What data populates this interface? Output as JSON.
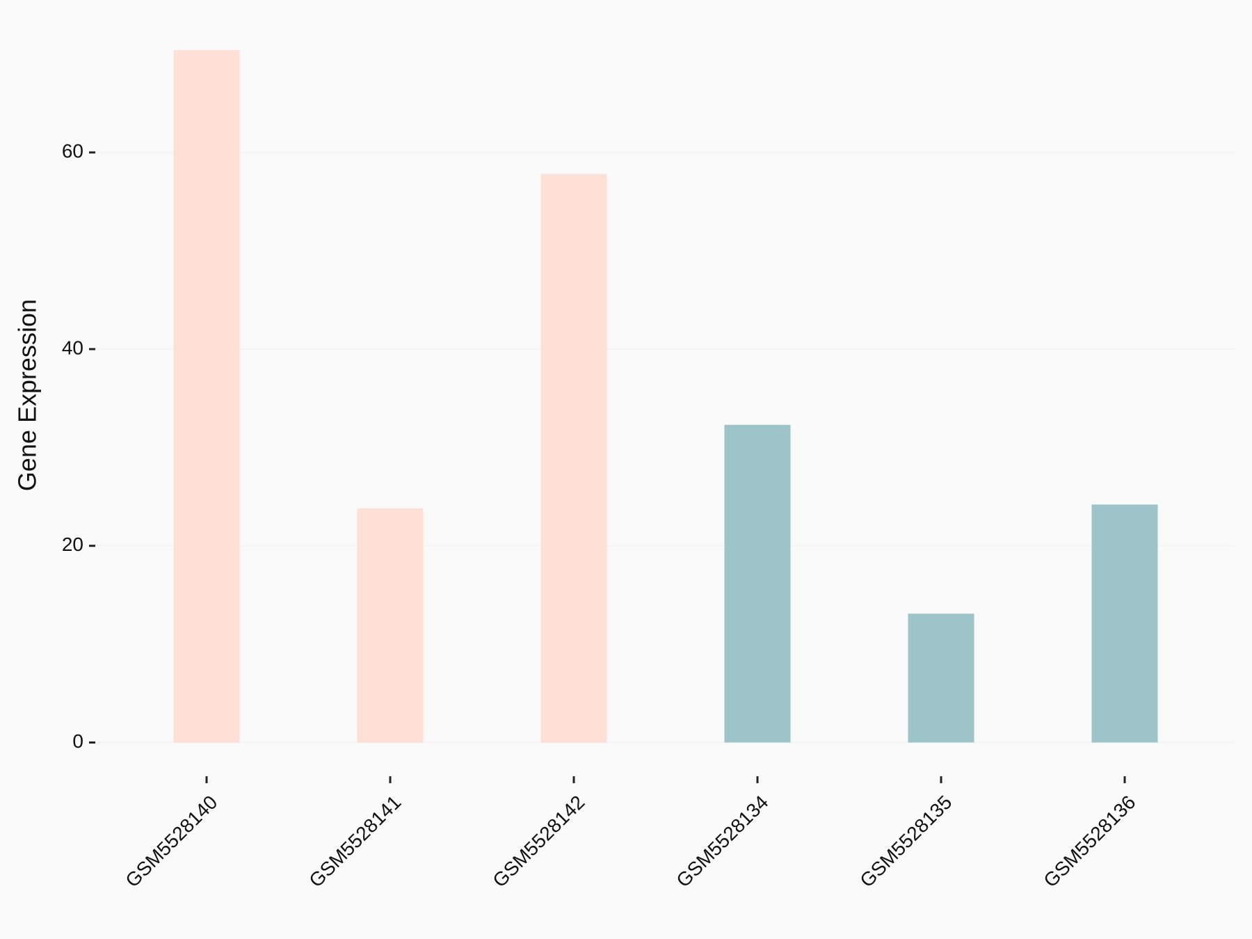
{
  "chart_data": {
    "type": "bar",
    "y_label": "Gene Expression",
    "categories": [
      "GSM5528140",
      "GSM5528141",
      "GSM5528142",
      "GSM5528134",
      "GSM5528135",
      "GSM5528136"
    ],
    "values": [
      70.4,
      23.8,
      57.8,
      32.3,
      13.1,
      24.2
    ],
    "colors": [
      "#fee0d6",
      "#fee0d6",
      "#fee0d6",
      "#9dc4c8",
      "#9dc4c8",
      "#9dc4c8"
    ],
    "ylim": [
      -3.5,
      73.9
    ],
    "yticks": [
      0,
      20,
      40,
      60
    ],
    "grid": true
  }
}
